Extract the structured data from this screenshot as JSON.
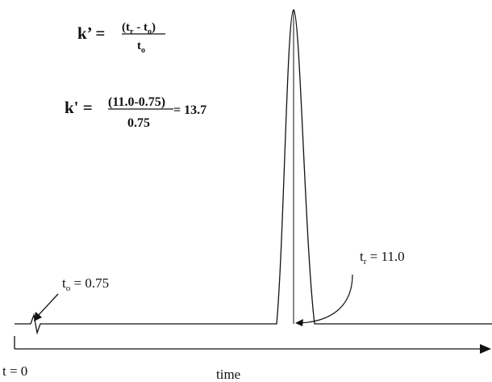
{
  "formula1": {
    "lhs": "k’ = ",
    "num_open": "(t",
    "num_r_sub": "r",
    "num_mid": " - t",
    "num_o_sub": "o",
    "num_close": ")",
    "den_t": "t",
    "den_o_sub": "o"
  },
  "formula2": {
    "lhs": "k' = ",
    "numerator": "(11.0-0.75)",
    "denominator": "0.75",
    "result": " = 13.7"
  },
  "labels": {
    "tr_t": "t",
    "tr_sub": "r",
    "tr_value": " = 11.0",
    "to_t": "t",
    "to_sub": "o",
    "to_value": " = 0.75",
    "t_zero": "t = 0",
    "time_axis": "time"
  }
}
